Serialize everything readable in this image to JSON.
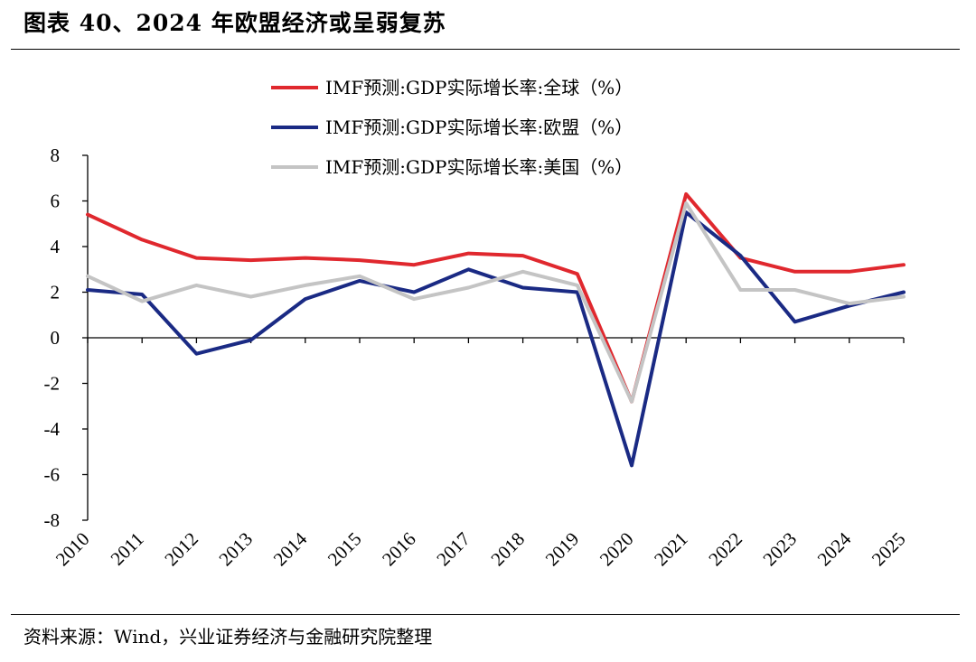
{
  "title": "图表 40、2024 年欧盟经济或呈弱复苏",
  "source": "资料来源：Wind，兴业证券经济与金融研究院整理",
  "chart_data": {
    "type": "line",
    "x": [
      "2010",
      "2011",
      "2012",
      "2013",
      "2014",
      "2015",
      "2016",
      "2017",
      "2018",
      "2019",
      "2020",
      "2021",
      "2022",
      "2023",
      "2024",
      "2025"
    ],
    "ylim": [
      -8,
      8
    ],
    "yticks": [
      "8",
      "6",
      "4",
      "2",
      "0",
      "-2",
      "-4",
      "-6",
      "-8"
    ],
    "grid": false,
    "legend_position": "top-center",
    "series": [
      {
        "name": "IMF预测:GDP实际增长率:全球（%）",
        "color": "#e0282e",
        "values": [
          5.4,
          4.3,
          3.5,
          3.4,
          3.5,
          3.4,
          3.2,
          3.7,
          3.6,
          2.8,
          -2.8,
          6.3,
          3.5,
          2.9,
          2.9,
          3.2
        ]
      },
      {
        "name": "IMF预测:GDP实际增长率:欧盟（%）",
        "color": "#1a2a84",
        "values": [
          2.1,
          1.9,
          -0.7,
          -0.1,
          1.7,
          2.5,
          2.0,
          3.0,
          2.2,
          2.0,
          -5.6,
          5.5,
          3.6,
          0.7,
          1.4,
          2.0
        ]
      },
      {
        "name": "IMF预测:GDP实际增长率:美国（%）",
        "color": "#c4c4c4",
        "values": [
          2.7,
          1.6,
          2.3,
          1.8,
          2.3,
          2.7,
          1.7,
          2.2,
          2.9,
          2.3,
          -2.8,
          5.9,
          2.1,
          2.1,
          1.5,
          1.8
        ]
      }
    ]
  }
}
